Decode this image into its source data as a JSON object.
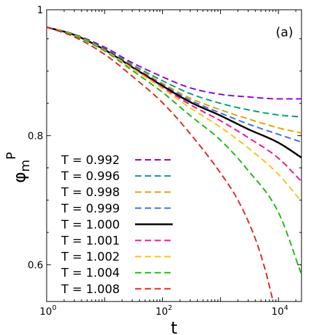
{
  "chart_data": {
    "type": "line",
    "panel_label": "(a)",
    "xlabel": "t",
    "ylabel_main": "φ",
    "ylabel_sub": "m",
    "ylabel_sup": "P",
    "x_scale": "log",
    "xlim": [
      1,
      25000
    ],
    "ylim": [
      0.543,
      0.995
    ],
    "x_ticks": [
      {
        "value": 1,
        "base": "10",
        "exp": "0"
      },
      {
        "value": 100,
        "base": "10",
        "exp": "2"
      },
      {
        "value": 10000,
        "base": "10",
        "exp": "4"
      }
    ],
    "y_ticks": [
      {
        "value": 0.6,
        "label": "0.6"
      },
      {
        "value": 0.8,
        "label": "0.8"
      },
      {
        "value": 0.995,
        "label": "1"
      }
    ],
    "grid": false,
    "legend_position": "lower-left",
    "series": [
      {
        "name": "T = 0.992",
        "color": "#9400d3",
        "dash": true,
        "x": [
          1,
          3,
          10,
          30,
          100,
          300,
          1000,
          3000,
          10000,
          25000
        ],
        "y": [
          0.968,
          0.957,
          0.937,
          0.913,
          0.891,
          0.874,
          0.864,
          0.86,
          0.857,
          0.857
        ]
      },
      {
        "name": "T = 0.996",
        "color": "#009e73",
        "dash": true,
        "x": [
          1,
          3,
          10,
          30,
          100,
          300,
          1000,
          3000,
          10000,
          25000
        ],
        "y": [
          0.968,
          0.957,
          0.935,
          0.91,
          0.885,
          0.865,
          0.85,
          0.84,
          0.832,
          0.829
        ]
      },
      {
        "name": "T = 0.998",
        "color": "#e69f00",
        "dash": true,
        "x": [
          1,
          3,
          10,
          30,
          100,
          300,
          1000,
          3000,
          10000,
          25000
        ],
        "y": [
          0.968,
          0.956,
          0.934,
          0.908,
          0.881,
          0.858,
          0.84,
          0.826,
          0.812,
          0.804
        ]
      },
      {
        "name": "T = 0.999",
        "color": "#3c6ee6",
        "dash": true,
        "x": [
          1,
          3,
          10,
          30,
          100,
          300,
          1000,
          3000,
          10000,
          25000
        ],
        "y": [
          0.968,
          0.956,
          0.934,
          0.907,
          0.879,
          0.855,
          0.835,
          0.818,
          0.802,
          0.79
        ]
      },
      {
        "name": "T = 1.000",
        "color": "#000000",
        "dash": false,
        "x": [
          1,
          3,
          10,
          30,
          100,
          300,
          1000,
          3000,
          10000,
          25000
        ],
        "y": [
          0.968,
          0.956,
          0.933,
          0.906,
          0.877,
          0.852,
          0.831,
          0.81,
          0.789,
          0.766
        ]
      },
      {
        "name": "T = 1.001",
        "color": "#f0148c",
        "dash": true,
        "x": [
          1,
          3,
          10,
          30,
          100,
          300,
          1000,
          3000,
          10000,
          25000
        ],
        "y": [
          0.968,
          0.956,
          0.933,
          0.905,
          0.875,
          0.848,
          0.823,
          0.797,
          0.765,
          0.729
        ]
      },
      {
        "name": "T = 1.002",
        "color": "#ffc020",
        "dash": true,
        "x": [
          1,
          3,
          10,
          30,
          100,
          300,
          1000,
          3000,
          10000,
          25000
        ],
        "y": [
          0.968,
          0.956,
          0.932,
          0.904,
          0.873,
          0.843,
          0.813,
          0.781,
          0.74,
          0.698
        ]
      },
      {
        "name": "T = 1.004",
        "color": "#20b814",
        "dash": true,
        "x": [
          1,
          3,
          10,
          30,
          100,
          300,
          1000,
          3000,
          10000,
          25000
        ],
        "y": [
          0.968,
          0.955,
          0.931,
          0.901,
          0.867,
          0.831,
          0.793,
          0.746,
          0.681,
          0.585
        ]
      },
      {
        "name": "T = 1.008",
        "color": "#e0281e",
        "dash": true,
        "x": [
          1,
          3,
          10,
          30,
          100,
          300,
          1000,
          2000,
          4000,
          6000,
          8000
        ],
        "y": [
          0.968,
          0.953,
          0.926,
          0.892,
          0.851,
          0.803,
          0.742,
          0.7,
          0.64,
          0.59,
          0.545
        ]
      }
    ]
  }
}
